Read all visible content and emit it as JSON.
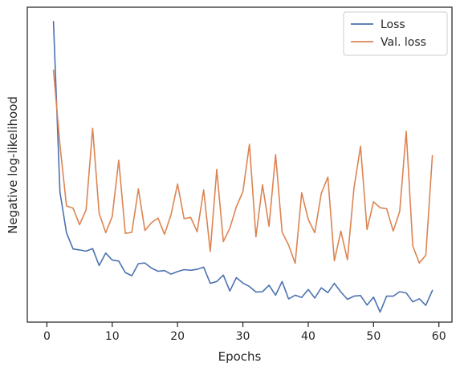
{
  "chart_data": {
    "type": "line",
    "title": "",
    "xlabel": "Epochs",
    "ylabel": "Negative log-likelihood",
    "xlim": [
      -3,
      62
    ],
    "ylim": [
      0,
      1
    ],
    "x_ticks": [
      0,
      10,
      20,
      30,
      40,
      50,
      60
    ],
    "y_ticks": [],
    "grid": false,
    "legend": "top-right",
    "x": [
      1,
      2,
      3,
      4,
      5,
      6,
      7,
      8,
      9,
      10,
      11,
      12,
      13,
      14,
      15,
      16,
      17,
      18,
      19,
      20,
      21,
      22,
      23,
      24,
      25,
      26,
      27,
      28,
      29,
      30,
      31,
      32,
      33,
      34,
      35,
      36,
      37,
      38,
      39,
      40,
      41,
      42,
      43,
      44,
      45,
      46,
      47,
      48,
      49,
      50,
      51,
      52,
      53,
      54,
      55,
      56,
      57,
      58,
      59
    ],
    "series": [
      {
        "name": "Loss",
        "color": "#4c72b0",
        "values": [
          0.945,
          0.41,
          0.283,
          0.232,
          0.229,
          0.225,
          0.233,
          0.18,
          0.219,
          0.197,
          0.194,
          0.158,
          0.148,
          0.186,
          0.188,
          0.172,
          0.162,
          0.164,
          0.153,
          0.161,
          0.167,
          0.165,
          0.168,
          0.175,
          0.124,
          0.13,
          0.15,
          0.1,
          0.142,
          0.125,
          0.114,
          0.097,
          0.098,
          0.118,
          0.087,
          0.13,
          0.075,
          0.087,
          0.08,
          0.105,
          0.078,
          0.11,
          0.095,
          0.124,
          0.097,
          0.074,
          0.084,
          0.086,
          0.056,
          0.081,
          0.034,
          0.084,
          0.084,
          0.098,
          0.094,
          0.066,
          0.076,
          0.055,
          0.102
        ]
      },
      {
        "name": "Val. loss",
        "color": "#dd8452",
        "values": [
          0.793,
          0.558,
          0.367,
          0.36,
          0.308,
          0.354,
          0.61,
          0.344,
          0.283,
          0.334,
          0.51,
          0.281,
          0.284,
          0.42,
          0.29,
          0.314,
          0.329,
          0.278,
          0.339,
          0.436,
          0.327,
          0.331,
          0.286,
          0.417,
          0.224,
          0.481,
          0.255,
          0.297,
          0.364,
          0.412,
          0.56,
          0.27,
          0.433,
          0.303,
          0.528,
          0.285,
          0.244,
          0.187,
          0.408,
          0.324,
          0.283,
          0.406,
          0.457,
          0.195,
          0.288,
          0.198,
          0.422,
          0.554,
          0.293,
          0.38,
          0.361,
          0.358,
          0.288,
          0.35,
          0.601,
          0.241,
          0.188,
          0.212,
          0.525
        ]
      }
    ]
  }
}
